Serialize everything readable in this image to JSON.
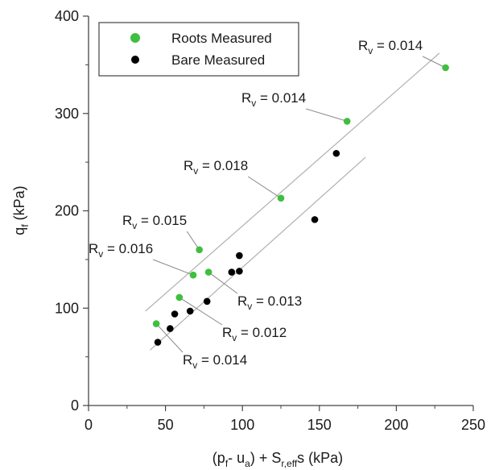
{
  "chart_data": {
    "type": "scatter",
    "xlabel": "(p",
    "xlabel_parts": {
      "p": "(p",
      "p_sub": "f",
      "mid": "- u",
      "u_sub": "a",
      "plus": ") + S",
      "s_sub": "r,eff",
      "tail": "s (kPa)"
    },
    "ylabel_parts": {
      "q": "q",
      "q_sub": "f",
      "unit": " (kPa)"
    },
    "xlim": [
      0,
      250
    ],
    "ylim": [
      0,
      400
    ],
    "xticks": [
      0,
      50,
      100,
      150,
      200,
      250
    ],
    "yticks": [
      0,
      100,
      200,
      300,
      400
    ],
    "grid": false,
    "legend_position": "top-left",
    "colors": {
      "roots": "#3fbf3f",
      "bare": "#000000",
      "fit": "#b0b0b0"
    },
    "series": [
      {
        "name": "Roots Measured",
        "points": [
          [
            44,
            84
          ],
          [
            59,
            111
          ],
          [
            68,
            134
          ],
          [
            72,
            160
          ],
          [
            78,
            137
          ],
          [
            125,
            213
          ],
          [
            168,
            292
          ],
          [
            232,
            347
          ]
        ]
      },
      {
        "name": "Bare Measured",
        "points": [
          [
            45,
            65
          ],
          [
            53,
            79
          ],
          [
            56,
            94
          ],
          [
            66,
            97
          ],
          [
            77,
            107
          ],
          [
            93,
            137
          ],
          [
            98,
            138
          ],
          [
            98,
            154
          ],
          [
            147,
            191
          ],
          [
            161,
            259
          ]
        ]
      }
    ],
    "fit_lines": [
      {
        "from": [
          37,
          97
        ],
        "to": [
          228,
          362
        ]
      },
      {
        "from": [
          40,
          57
        ],
        "to": [
          180,
          255
        ]
      }
    ],
    "annotations": [
      {
        "text": "0.014",
        "anchor": [
          232,
          347
        ]
      },
      {
        "text": "0.014",
        "anchor": [
          168,
          292
        ]
      },
      {
        "text": "0.018",
        "anchor": [
          125,
          213
        ]
      },
      {
        "text": "0.015",
        "anchor": [
          72,
          160
        ]
      },
      {
        "text": "0.016",
        "anchor": [
          68,
          134
        ]
      },
      {
        "text": "0.013",
        "anchor": [
          78,
          137
        ]
      },
      {
        "text": "0.012",
        "anchor": [
          59,
          111
        ]
      },
      {
        "text": "0.014",
        "anchor": [
          44,
          84
        ]
      }
    ],
    "annotation_prefix": "R",
    "annotation_sub": "v",
    "annotation_eq": " = "
  }
}
